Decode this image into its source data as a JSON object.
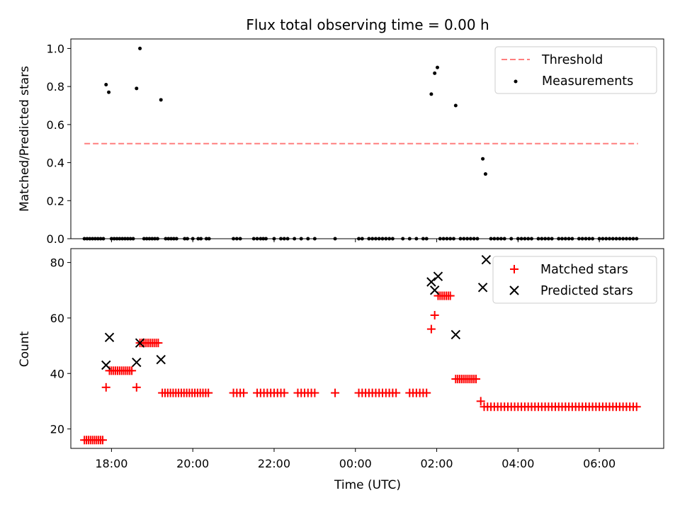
{
  "title": "Flux total observing time = 0.00 h",
  "chart_data": [
    {
      "type": "scatter",
      "ylabel": "Matched/Predicted stars",
      "xlabel": "",
      "x_axis": "time_utc",
      "xlim": [
        "17:00",
        "07:35"
      ],
      "ylim": [
        0,
        1.05
      ],
      "yticks": [
        "0.0",
        "0.2",
        "0.4",
        "0.6",
        "0.8",
        "1.0"
      ],
      "legend_position": "upper right",
      "series": [
        {
          "name": "Threshold",
          "kind": "dashed-line",
          "color": "#ff7f7f",
          "x": [
            "17:20",
            "06:57"
          ],
          "y": [
            0.5,
            0.5
          ]
        },
        {
          "name": "Measurements",
          "kind": "dots",
          "color": "#000000",
          "points": [
            [
              "17:52",
              0.81
            ],
            [
              "17:56",
              0.77
            ],
            [
              "18:37",
              0.79
            ],
            [
              "18:42",
              1.0
            ],
            [
              "19:13",
              0.73
            ],
            [
              "01:52",
              0.76
            ],
            [
              "01:57",
              0.87
            ],
            [
              "02:01",
              0.9
            ],
            [
              "02:28",
              0.7
            ],
            [
              "03:08",
              0.42
            ],
            [
              "03:12",
              0.34
            ]
          ],
          "zero_points": [
            "17:20",
            "17:24",
            "17:28",
            "17:32",
            "17:36",
            "17:40",
            "17:44",
            "17:48",
            "18:00",
            "18:04",
            "18:08",
            "18:12",
            "18:16",
            "18:20",
            "18:24",
            "18:28",
            "18:32",
            "18:48",
            "18:52",
            "18:56",
            "19:00",
            "19:04",
            "19:08",
            "19:20",
            "19:24",
            "19:28",
            "19:32",
            "19:36",
            "19:48",
            "19:52",
            "20:00",
            "20:08",
            "20:12",
            "20:20",
            "20:24",
            "21:00",
            "21:05",
            "21:10",
            "21:30",
            "21:35",
            "21:40",
            "21:44",
            "21:48",
            "22:00",
            "22:10",
            "22:15",
            "22:20",
            "22:30",
            "22:40",
            "22:50",
            "23:00",
            "23:30",
            "00:05",
            "00:10",
            "00:20",
            "00:25",
            "00:30",
            "00:35",
            "00:40",
            "00:45",
            "00:50",
            "00:55",
            "01:10",
            "01:20",
            "01:30",
            "01:40",
            "01:45",
            "02:05",
            "02:10",
            "02:15",
            "02:20",
            "02:25",
            "02:35",
            "02:40",
            "02:45",
            "02:50",
            "02:55",
            "03:00",
            "03:20",
            "03:25",
            "03:30",
            "03:35",
            "03:40",
            "03:50",
            "04:00",
            "04:05",
            "04:10",
            "04:15",
            "04:20",
            "04:30",
            "04:35",
            "04:40",
            "04:45",
            "04:50",
            "05:00",
            "05:05",
            "05:10",
            "05:15",
            "05:20",
            "05:30",
            "05:35",
            "05:40",
            "05:45",
            "05:50",
            "06:00",
            "06:05",
            "06:10",
            "06:15",
            "06:20",
            "06:25",
            "06:30",
            "06:35",
            "06:40",
            "06:45",
            "06:50",
            "06:55"
          ]
        }
      ]
    },
    {
      "type": "scatter",
      "ylabel": "Count",
      "xlabel": "Time (UTC)",
      "x_axis": "time_utc",
      "xlim": [
        "17:00",
        "07:35"
      ],
      "ylim": [
        13,
        85
      ],
      "yticks": [
        "20",
        "40",
        "60",
        "80"
      ],
      "xticks": [
        "18:00",
        "20:00",
        "22:00",
        "00:00",
        "02:00",
        "04:00",
        "06:00"
      ],
      "legend_position": "upper right",
      "series": [
        {
          "name": "Matched stars",
          "marker": "plus",
          "color": "#ff0000",
          "groups": [
            {
              "y": 16,
              "x_from": "17:20",
              "x_to": "17:47",
              "step_min": 3
            },
            {
              "y": 35,
              "x": [
                "17:52",
                "18:37"
              ]
            },
            {
              "y": 41,
              "x_from": "17:57",
              "x_to": "18:31",
              "step_min": 3
            },
            {
              "y": 51,
              "x_from": "18:42",
              "x_to": "19:10",
              "step_min": 3
            },
            {
              "y": 33,
              "x_from": "19:15",
              "x_to": "20:25",
              "step_min": 4
            },
            {
              "y": 33,
              "x_from": "21:00",
              "x_to": "21:15",
              "step_min": 5
            },
            {
              "y": 33,
              "x_from": "21:35",
              "x_to": "22:15",
              "step_min": 5
            },
            {
              "y": 33,
              "x_from": "22:35",
              "x_to": "23:00",
              "step_min": 5
            },
            {
              "y": 33,
              "x": [
                "23:30"
              ]
            },
            {
              "y": 33,
              "x_from": "00:05",
              "x_to": "01:00",
              "step_min": 5
            },
            {
              "y": 33,
              "x_from": "01:20",
              "x_to": "01:45",
              "step_min": 5
            },
            {
              "y": 56,
              "x": [
                "01:52"
              ]
            },
            {
              "y": 61,
              "x": [
                "01:57"
              ]
            },
            {
              "y": 68,
              "x_from": "02:02",
              "x_to": "02:22",
              "step_min": 3
            },
            {
              "y": 38,
              "x_from": "02:28",
              "x_to": "02:59",
              "step_min": 3
            },
            {
              "y": 30,
              "x": [
                "03:05"
              ]
            },
            {
              "y": 28,
              "x_from": "03:10",
              "x_to": "06:57",
              "step_min": 5
            }
          ]
        },
        {
          "name": "Predicted stars",
          "marker": "x",
          "color": "#000000",
          "points": [
            [
              "17:52",
              43
            ],
            [
              "17:57",
              53
            ],
            [
              "18:37",
              44
            ],
            [
              "18:42",
              51
            ],
            [
              "19:13",
              45
            ],
            [
              "01:52",
              73
            ],
            [
              "01:57",
              70
            ],
            [
              "02:02",
              75
            ],
            [
              "02:28",
              54
            ],
            [
              "03:08",
              71
            ],
            [
              "03:13",
              81
            ]
          ]
        }
      ]
    }
  ]
}
